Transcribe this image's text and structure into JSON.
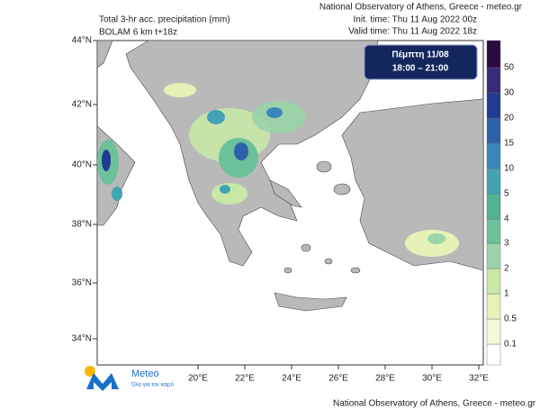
{
  "header": {
    "title": "Total 3-hr acc. precipitation (mm)",
    "model": "BOLAM 6 km t+18z",
    "source": "National Observatory of Athens, Greece - meteo.gr",
    "init_time": "Init. time: Thu 11 Aug 2022 00z",
    "valid_time": "Valid time: Thu 11 Aug 2022 18z"
  },
  "date_box": {
    "day": "Πέμπτη 11/08",
    "hours": "18:00 – 21:00"
  },
  "map": {
    "lat_labels": [
      "44°N",
      "42°N",
      "40°N",
      "38°N",
      "36°N",
      "34°N"
    ],
    "lon_labels": [
      "20°E",
      "22°E",
      "24°E",
      "26°E",
      "28°E",
      "30°E",
      "32°E"
    ]
  },
  "colorbar": {
    "levels": [
      0.1,
      0.5,
      1,
      2,
      3,
      4,
      5,
      10,
      15,
      20,
      30,
      50
    ],
    "colors": [
      "#ffffff",
      "#f4f8d8",
      "#e4f2b8",
      "#c8e8a8",
      "#9ad4a8",
      "#6cc09a",
      "#4fb394",
      "#43a3b4",
      "#3a86bd",
      "#2d62a8",
      "#213a92",
      "#3a2a7a",
      "#2a0a40"
    ]
  },
  "logo": {
    "name": "Meteo",
    "tagline": "Όλα για τον καιρό"
  },
  "footer": "National Observatory of Athens, Greece - meteo.gr"
}
